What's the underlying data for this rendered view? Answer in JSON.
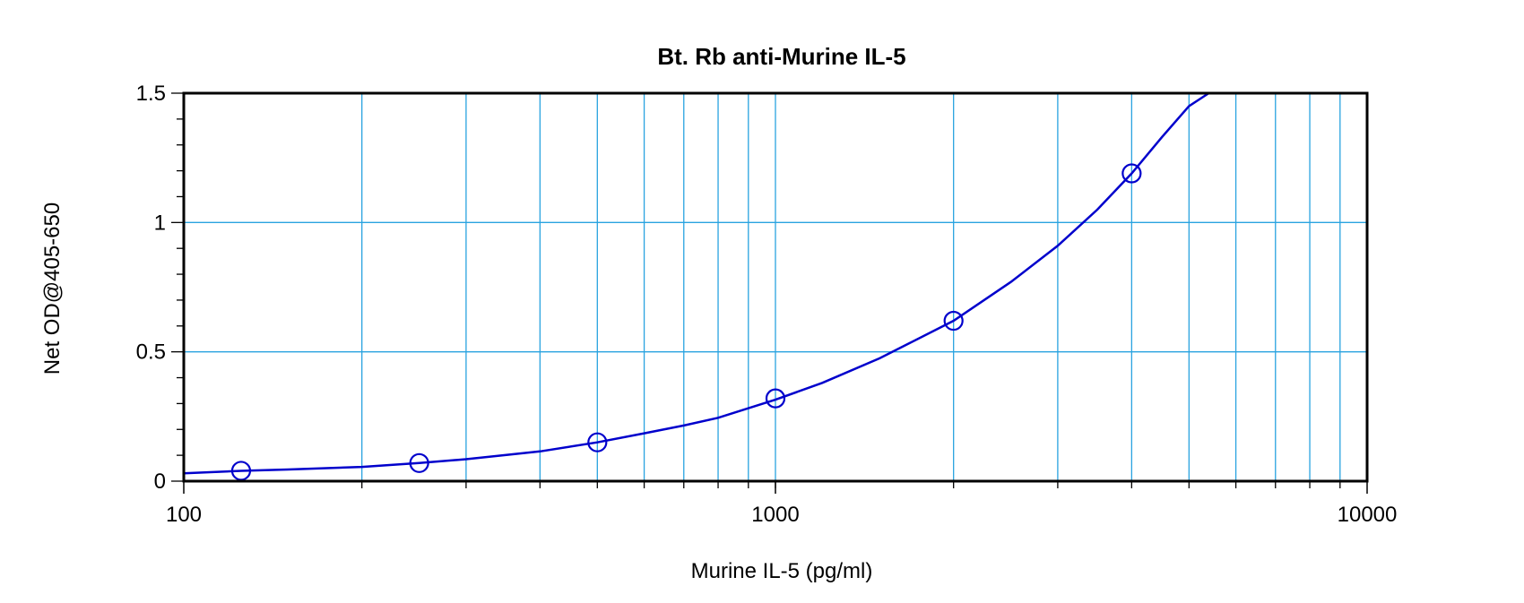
{
  "chart_data": {
    "type": "scatter",
    "title": "Bt. Rb anti-Murine IL-5",
    "xlabel": "Murine IL-5 (pg/ml)",
    "ylabel": "Net OD@405-650",
    "x_scale": "log",
    "xlim": [
      100,
      10000
    ],
    "ylim": [
      0,
      1.5
    ],
    "grid": true,
    "x_ticks": [
      {
        "value": 100,
        "label": "100"
      },
      {
        "value": 1000,
        "label": "1000"
      },
      {
        "value": 10000,
        "label": "10000"
      }
    ],
    "y_ticks": [
      {
        "value": 0,
        "label": "0"
      },
      {
        "value": 0.5,
        "label": "0.5"
      },
      {
        "value": 1,
        "label": "1"
      },
      {
        "value": 1.5,
        "label": "1.5"
      }
    ],
    "series": [
      {
        "marker": "open-circle",
        "x": [
          125,
          250,
          500,
          1000,
          2000,
          4000
        ],
        "y": [
          0.04,
          0.07,
          0.15,
          0.32,
          0.62,
          1.19
        ]
      }
    ],
    "fit_curve": {
      "x": [
        100,
        125,
        150,
        200,
        250,
        300,
        400,
        500,
        600,
        700,
        800,
        1000,
        1200,
        1500,
        2000,
        2500,
        3000,
        3500,
        4000,
        4500,
        5000,
        5400
      ],
      "y": [
        0.03,
        0.04,
        0.045,
        0.055,
        0.07,
        0.085,
        0.115,
        0.15,
        0.185,
        0.215,
        0.245,
        0.315,
        0.38,
        0.475,
        0.62,
        0.77,
        0.91,
        1.05,
        1.19,
        1.33,
        1.45,
        1.5
      ]
    },
    "colors": {
      "series": "#0000cc",
      "grid": "#29a3e0",
      "axis": "#000000"
    }
  }
}
